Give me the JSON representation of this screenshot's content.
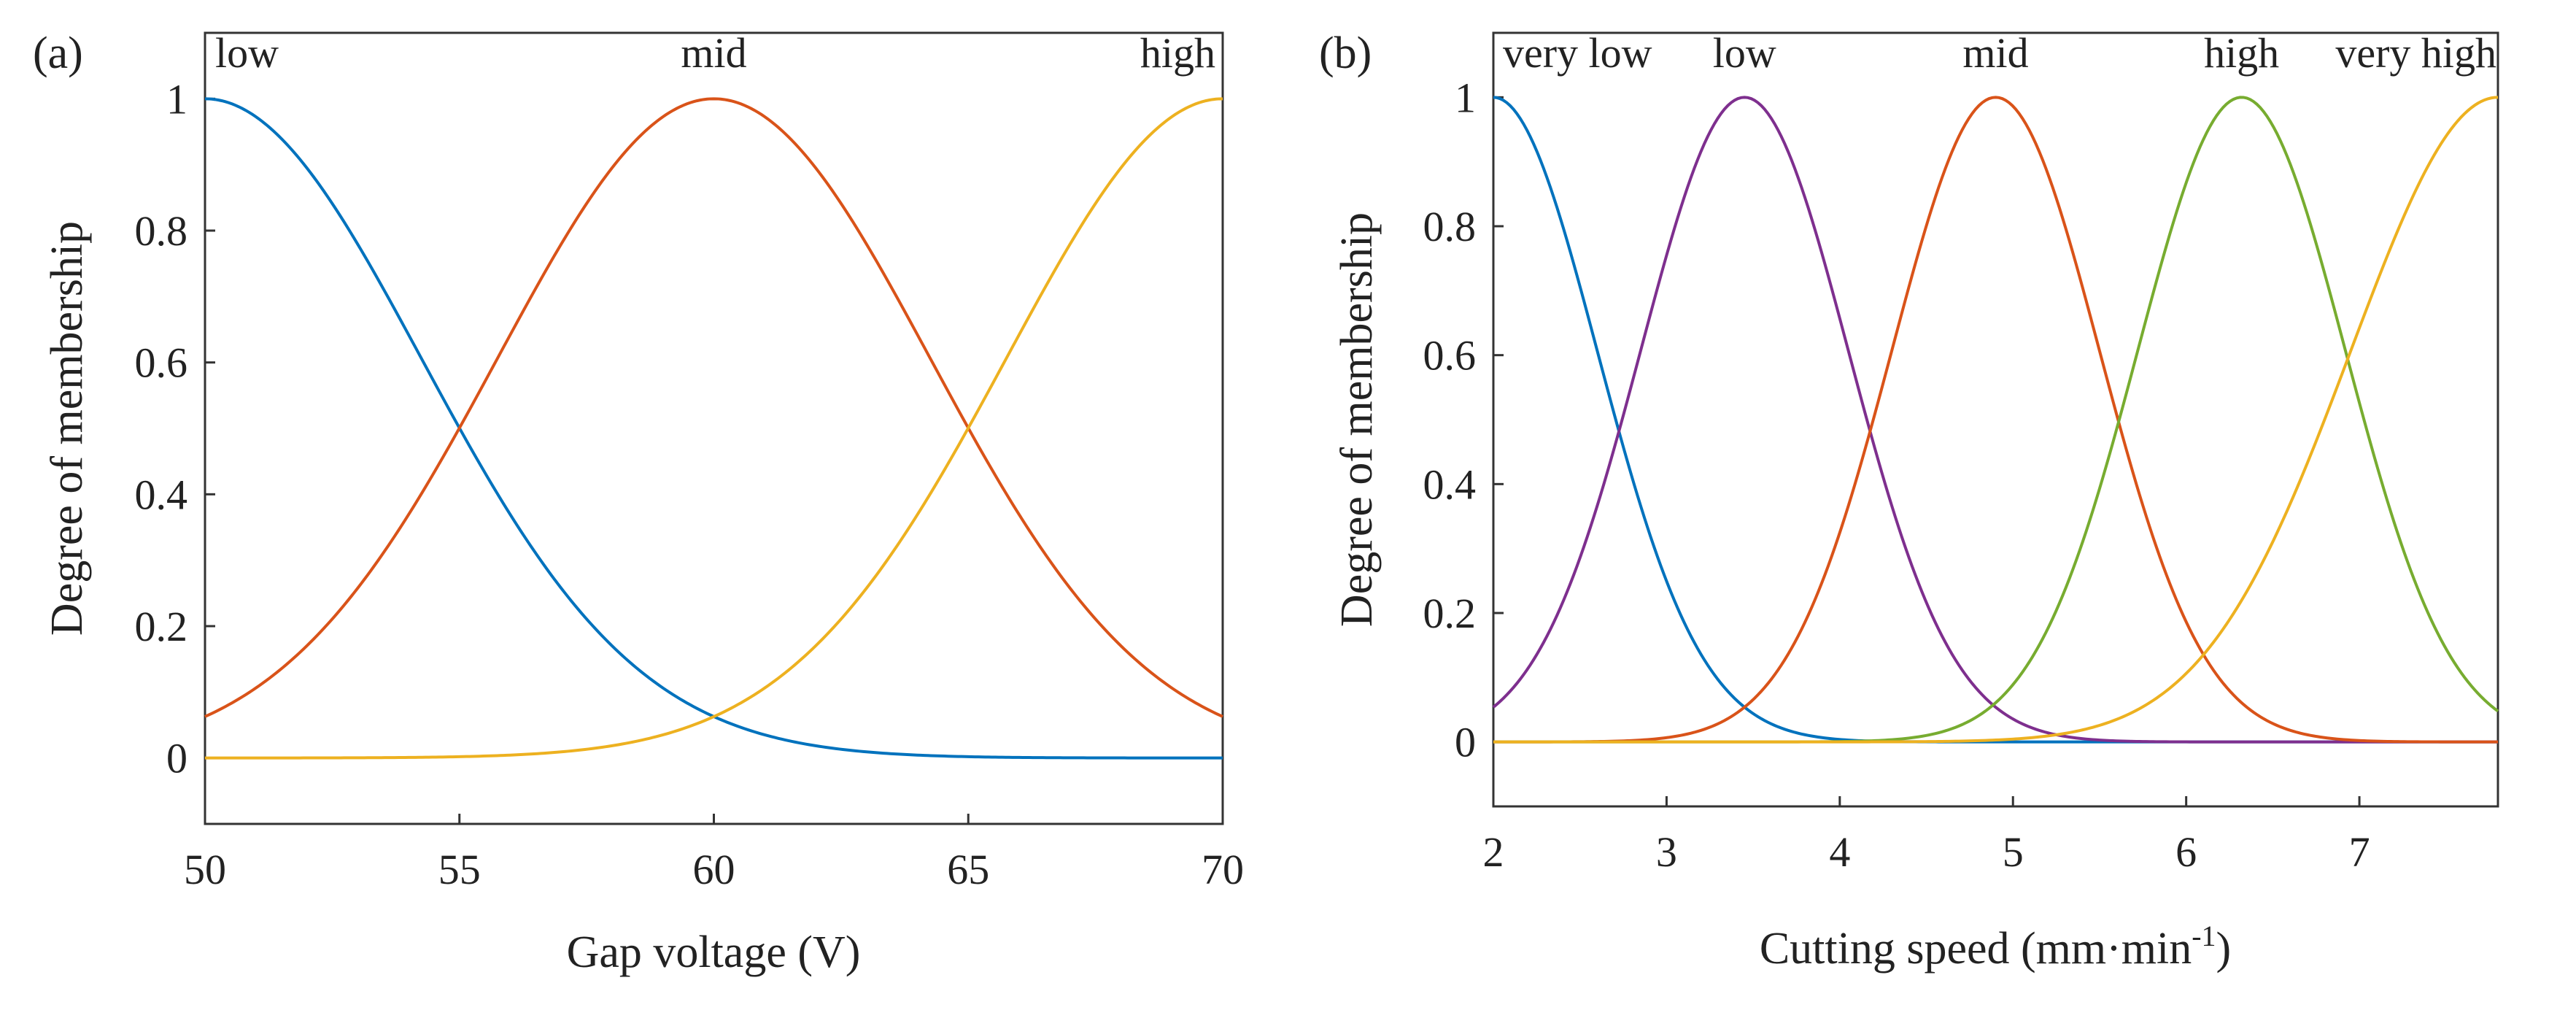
{
  "chart_data": [
    {
      "type": "line",
      "panel_label": "(a)",
      "xlabel": "Gap voltage (V)",
      "ylabel": "Degree of membership",
      "xlim": [
        50,
        70
      ],
      "ylim": [
        -0.1,
        1.1
      ],
      "xticks": [
        50,
        55,
        60,
        65,
        70
      ],
      "xtick_labels": [
        "50",
        "55",
        "60",
        "65",
        "70"
      ],
      "yticks": [
        0,
        0.2,
        0.4,
        0.6,
        0.8,
        1
      ],
      "ytick_labels": [
        "0",
        "0.2",
        "0.4",
        "0.6",
        "0.8",
        "1"
      ],
      "series": [
        {
          "name": "low",
          "membership": "gaussian",
          "center": 50,
          "sigma": 4.25,
          "color": "#0072BD"
        },
        {
          "name": "mid",
          "membership": "gaussian",
          "center": 60,
          "sigma": 4.25,
          "color": "#D95319"
        },
        {
          "name": "high",
          "membership": "gaussian",
          "center": 70,
          "sigma": 4.25,
          "color": "#EDB120"
        }
      ]
    },
    {
      "type": "line",
      "panel_label": "(b)",
      "xlabel": "Cutting speed (mm·min",
      "xlabel_sup": "-1",
      "xlabel_close": ")",
      "ylabel": "Degree of membership",
      "xlim": [
        2,
        7.8
      ],
      "ylim": [
        -0.1,
        1.1
      ],
      "xticks": [
        2,
        3,
        4,
        5,
        6,
        7
      ],
      "xtick_labels": [
        "2",
        "3",
        "4",
        "5",
        "6",
        "7"
      ],
      "yticks": [
        0,
        0.2,
        0.4,
        0.6,
        0.8,
        1
      ],
      "ytick_labels": [
        "0",
        "0.2",
        "0.4",
        "0.6",
        "0.8",
        "1"
      ],
      "series": [
        {
          "name": "very low",
          "membership": "gaussian",
          "center": 2.0,
          "sigma": 0.6,
          "color": "#0072BD"
        },
        {
          "name": "low",
          "membership": "gaussian",
          "center": 3.45,
          "sigma": 0.6,
          "color": "#7E2F8E"
        },
        {
          "name": "mid",
          "membership": "gaussian",
          "center": 4.9,
          "sigma": 0.6,
          "color": "#D95319"
        },
        {
          "name": "high",
          "membership": "gaussian",
          "center": 6.32,
          "sigma": 0.6,
          "color": "#77AC30"
        },
        {
          "name": "very high",
          "membership": "gaussian",
          "center": 7.8,
          "sigma": 0.85,
          "color": "#EDB120"
        }
      ]
    }
  ]
}
